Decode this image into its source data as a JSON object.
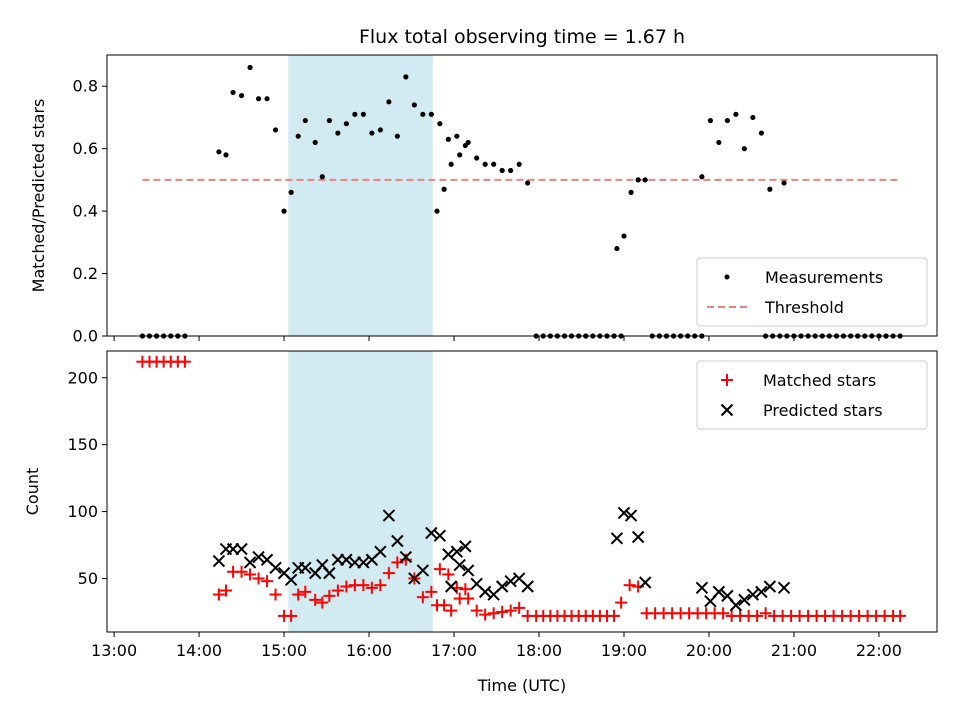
{
  "chart_data": [
    {
      "type": "scatter",
      "title": "Flux total observing time = 1.67 h",
      "xlabel": "",
      "ylabel": "Matched/Predicted stars",
      "xlim": [
        "12:55",
        "22:41"
      ],
      "ylim": [
        0,
        0.9
      ],
      "yticks": [
        0.0,
        0.2,
        0.4,
        0.6,
        0.8
      ],
      "ytick_labels": [
        "0.0",
        "0.2",
        "0.4",
        "0.6",
        "0.8"
      ],
      "shaded_interval": {
        "start": "15:03",
        "end": "16:45",
        "color": "#add8e6"
      },
      "legend_position": "lower right",
      "series": [
        {
          "name": "Measurements",
          "kind": "points",
          "color": "#000000",
          "points": [
            [
              "13:20",
              0
            ],
            [
              "13:25",
              0
            ],
            [
              "13:30",
              0
            ],
            [
              "13:35",
              0
            ],
            [
              "13:40",
              0
            ],
            [
              "13:45",
              0
            ],
            [
              "13:50",
              0
            ],
            [
              "14:14",
              0.59
            ],
            [
              "14:19",
              0.58
            ],
            [
              "14:24",
              0.78
            ],
            [
              "14:30",
              0.77
            ],
            [
              "14:36",
              0.86
            ],
            [
              "14:42",
              0.76
            ],
            [
              "14:48",
              0.76
            ],
            [
              "14:54",
              0.66
            ],
            [
              "15:00",
              0.4
            ],
            [
              "15:05",
              0.46
            ],
            [
              "15:10",
              0.64
            ],
            [
              "15:15",
              0.69
            ],
            [
              "15:22",
              0.62
            ],
            [
              "15:27",
              0.51
            ],
            [
              "15:32",
              0.69
            ],
            [
              "15:38",
              0.65
            ],
            [
              "15:44",
              0.68
            ],
            [
              "15:50",
              0.71
            ],
            [
              "15:56",
              0.71
            ],
            [
              "16:02",
              0.65
            ],
            [
              "16:08",
              0.66
            ],
            [
              "16:14",
              0.75
            ],
            [
              "16:20",
              0.64
            ],
            [
              "16:26",
              0.83
            ],
            [
              "16:32",
              0.74
            ],
            [
              "16:38",
              0.71
            ],
            [
              "16:44",
              0.71
            ],
            [
              "16:50",
              0.68
            ],
            [
              "16:56",
              0.63
            ],
            [
              "17:02",
              0.64
            ],
            [
              "17:08",
              0.61
            ],
            [
              "16:48",
              0.4
            ],
            [
              "16:53",
              0.47
            ],
            [
              "16:58",
              0.55
            ],
            [
              "17:04",
              0.58
            ],
            [
              "17:10",
              0.62
            ],
            [
              "17:16",
              0.57
            ],
            [
              "17:22",
              0.55
            ],
            [
              "17:28",
              0.55
            ],
            [
              "17:34",
              0.53
            ],
            [
              "17:40",
              0.53
            ],
            [
              "17:46",
              0.55
            ],
            [
              "17:52",
              0.49
            ],
            [
              "17:58",
              0
            ],
            [
              "18:03",
              0
            ],
            [
              "18:08",
              0
            ],
            [
              "18:13",
              0
            ],
            [
              "18:18",
              0
            ],
            [
              "18:23",
              0
            ],
            [
              "18:28",
              0
            ],
            [
              "18:33",
              0
            ],
            [
              "18:38",
              0
            ],
            [
              "18:43",
              0
            ],
            [
              "18:48",
              0
            ],
            [
              "18:53",
              0
            ],
            [
              "18:58",
              0
            ],
            [
              "18:55",
              0.28
            ],
            [
              "19:00",
              0.32
            ],
            [
              "19:05",
              0.46
            ],
            [
              "19:10",
              0.5
            ],
            [
              "19:15",
              0.5
            ],
            [
              "19:20",
              0
            ],
            [
              "19:25",
              0
            ],
            [
              "19:30",
              0
            ],
            [
              "19:35",
              0
            ],
            [
              "19:40",
              0
            ],
            [
              "19:45",
              0
            ],
            [
              "19:50",
              0
            ],
            [
              "19:55",
              0
            ],
            [
              "19:55",
              0.51
            ],
            [
              "20:01",
              0.69
            ],
            [
              "20:07",
              0.62
            ],
            [
              "20:13",
              0.69
            ],
            [
              "20:19",
              0.71
            ],
            [
              "20:25",
              0.6
            ],
            [
              "20:31",
              0.7
            ],
            [
              "20:37",
              0.65
            ],
            [
              "20:43",
              0.47
            ],
            [
              "20:53",
              0.49
            ],
            [
              "20:40",
              0
            ],
            [
              "20:45",
              0
            ],
            [
              "20:50",
              0
            ],
            [
              "20:55",
              0
            ],
            [
              "21:00",
              0
            ],
            [
              "21:05",
              0
            ],
            [
              "21:10",
              0
            ],
            [
              "21:15",
              0
            ],
            [
              "21:20",
              0
            ],
            [
              "21:25",
              0
            ],
            [
              "21:30",
              0
            ],
            [
              "21:35",
              0
            ],
            [
              "21:40",
              0
            ],
            [
              "21:45",
              0
            ],
            [
              "21:50",
              0
            ],
            [
              "21:55",
              0
            ],
            [
              "22:00",
              0
            ],
            [
              "22:05",
              0
            ],
            [
              "22:10",
              0
            ],
            [
              "22:15",
              0
            ]
          ]
        },
        {
          "name": "Threshold",
          "kind": "dashed-line",
          "color": "#f08080",
          "x": [
            "13:20",
            "22:15"
          ],
          "y": [
            0.5,
            0.5
          ]
        }
      ]
    },
    {
      "type": "scatter",
      "title": "",
      "xlabel": "Time (UTC)",
      "ylabel": "Count",
      "xlim": [
        "12:55",
        "22:41"
      ],
      "xticks": [
        "13:00",
        "14:00",
        "15:00",
        "16:00",
        "17:00",
        "18:00",
        "19:00",
        "20:00",
        "21:00",
        "22:00"
      ],
      "ylim": [
        10,
        220
      ],
      "yticks": [
        50,
        100,
        150,
        200
      ],
      "ytick_labels": [
        "50",
        "100",
        "150",
        "200"
      ],
      "shaded_interval": {
        "start": "15:03",
        "end": "16:45",
        "color": "#add8e6"
      },
      "legend_position": "upper right",
      "series": [
        {
          "name": "Matched stars",
          "marker": "plus",
          "color": "#ff0000",
          "points": [
            [
              "13:20",
              212
            ],
            [
              "13:25",
              212
            ],
            [
              "13:30",
              212
            ],
            [
              "13:35",
              212
            ],
            [
              "13:40",
              212
            ],
            [
              "13:45",
              212
            ],
            [
              "13:50",
              212
            ],
            [
              "14:14",
              38
            ],
            [
              "14:19",
              41
            ],
            [
              "14:24",
              55
            ],
            [
              "14:30",
              55
            ],
            [
              "14:36",
              53
            ],
            [
              "14:42",
              50
            ],
            [
              "14:48",
              48
            ],
            [
              "14:54",
              38
            ],
            [
              "15:00",
              22
            ],
            [
              "15:05",
              22
            ],
            [
              "15:10",
              38
            ],
            [
              "15:15",
              40
            ],
            [
              "15:22",
              34
            ],
            [
              "15:27",
              32
            ],
            [
              "15:32",
              37
            ],
            [
              "15:38",
              41
            ],
            [
              "15:44",
              44
            ],
            [
              "15:50",
              45
            ],
            [
              "15:56",
              45
            ],
            [
              "16:02",
              43
            ],
            [
              "16:08",
              45
            ],
            [
              "16:14",
              54
            ],
            [
              "16:20",
              62
            ],
            [
              "16:26",
              64
            ],
            [
              "16:32",
              50
            ],
            [
              "16:38",
              36
            ],
            [
              "16:44",
              40
            ],
            [
              "16:50",
              57
            ],
            [
              "16:56",
              53
            ],
            [
              "17:02",
              43
            ],
            [
              "17:08",
              42
            ],
            [
              "16:48",
              30
            ],
            [
              "16:53",
              30
            ],
            [
              "16:58",
              26
            ],
            [
              "17:04",
              35
            ],
            [
              "17:10",
              35
            ],
            [
              "17:16",
              26
            ],
            [
              "17:22",
              23
            ],
            [
              "17:28",
              24
            ],
            [
              "17:34",
              25
            ],
            [
              "17:40",
              26
            ],
            [
              "17:46",
              28
            ],
            [
              "17:52",
              22
            ],
            [
              "17:58",
              22
            ],
            [
              "18:03",
              22
            ],
            [
              "18:08",
              22
            ],
            [
              "18:13",
              22
            ],
            [
              "18:18",
              22
            ],
            [
              "18:23",
              22
            ],
            [
              "18:28",
              22
            ],
            [
              "18:33",
              22
            ],
            [
              "18:38",
              22
            ],
            [
              "18:43",
              22
            ],
            [
              "18:48",
              22
            ],
            [
              "18:53",
              22
            ],
            [
              "18:58",
              32
            ],
            [
              "19:04",
              45
            ],
            [
              "19:10",
              44
            ],
            [
              "19:16",
              24
            ],
            [
              "19:22",
              24
            ],
            [
              "19:28",
              24
            ],
            [
              "19:34",
              24
            ],
            [
              "19:40",
              24
            ],
            [
              "19:46",
              24
            ],
            [
              "19:52",
              24
            ],
            [
              "19:58",
              24
            ],
            [
              "20:04",
              24
            ],
            [
              "20:10",
              24
            ],
            [
              "20:16",
              22
            ],
            [
              "20:22",
              22
            ],
            [
              "20:28",
              22
            ],
            [
              "20:34",
              22
            ],
            [
              "20:40",
              24
            ],
            [
              "20:46",
              22
            ],
            [
              "20:52",
              22
            ],
            [
              "20:58",
              22
            ],
            [
              "21:04",
              22
            ],
            [
              "21:10",
              22
            ],
            [
              "21:16",
              22
            ],
            [
              "21:22",
              22
            ],
            [
              "21:28",
              22
            ],
            [
              "21:34",
              22
            ],
            [
              "21:40",
              22
            ],
            [
              "21:46",
              22
            ],
            [
              "21:52",
              22
            ],
            [
              "21:58",
              22
            ],
            [
              "22:04",
              22
            ],
            [
              "22:10",
              22
            ],
            [
              "22:15",
              22
            ]
          ]
        },
        {
          "name": "Predicted stars",
          "marker": "x",
          "color": "#000000",
          "points": [
            [
              "14:14",
              63
            ],
            [
              "14:19",
              72
            ],
            [
              "14:24",
              72
            ],
            [
              "14:30",
              72
            ],
            [
              "14:36",
              62
            ],
            [
              "14:42",
              66
            ],
            [
              "14:48",
              64
            ],
            [
              "14:54",
              58
            ],
            [
              "15:00",
              54
            ],
            [
              "15:05",
              49
            ],
            [
              "15:10",
              58
            ],
            [
              "15:15",
              58
            ],
            [
              "15:22",
              54
            ],
            [
              "15:27",
              60
            ],
            [
              "15:32",
              54
            ],
            [
              "15:38",
              64
            ],
            [
              "15:44",
              64
            ],
            [
              "15:50",
              62
            ],
            [
              "15:56",
              62
            ],
            [
              "16:02",
              64
            ],
            [
              "16:08",
              70
            ],
            [
              "16:14",
              97
            ],
            [
              "16:20",
              78
            ],
            [
              "16:26",
              66
            ],
            [
              "16:32",
              50
            ],
            [
              "16:38",
              56
            ],
            [
              "16:44",
              84
            ],
            [
              "16:50",
              82
            ],
            [
              "16:56",
              68
            ],
            [
              "17:02",
              70
            ],
            [
              "17:08",
              74
            ],
            [
              "16:58",
              44
            ],
            [
              "17:04",
              60
            ],
            [
              "17:10",
              56
            ],
            [
              "17:16",
              46
            ],
            [
              "17:22",
              40
            ],
            [
              "17:28",
              38
            ],
            [
              "17:34",
              44
            ],
            [
              "17:40",
              48
            ],
            [
              "17:46",
              50
            ],
            [
              "17:52",
              44
            ],
            [
              "18:55",
              80
            ],
            [
              "19:00",
              99
            ],
            [
              "19:05",
              97
            ],
            [
              "19:10",
              81
            ],
            [
              "19:15",
              47
            ],
            [
              "19:55",
              43
            ],
            [
              "20:01",
              33
            ],
            [
              "20:07",
              40
            ],
            [
              "20:13",
              37
            ],
            [
              "20:19",
              30
            ],
            [
              "20:25",
              34
            ],
            [
              "20:31",
              38
            ],
            [
              "20:37",
              40
            ],
            [
              "20:43",
              44
            ],
            [
              "20:53",
              43
            ]
          ]
        }
      ]
    }
  ]
}
